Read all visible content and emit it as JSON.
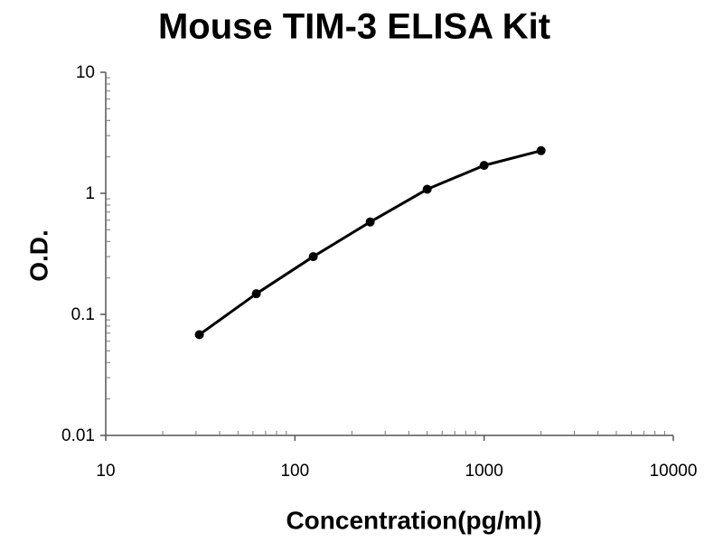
{
  "chart_data": {
    "type": "line",
    "title": "Mouse TIM-3 ELISA Kit",
    "xlabel": "Concentration(pg/ml)",
    "ylabel": "O.D.",
    "x": [
      31.25,
      62.5,
      125,
      250,
      500,
      1000,
      2000
    ],
    "values": [
      0.068,
      0.148,
      0.3,
      0.58,
      1.08,
      1.7,
      2.25
    ],
    "color": "#000000",
    "xscale": "log",
    "yscale": "log",
    "xlim": [
      10,
      10000
    ],
    "ylim": [
      0.01,
      10
    ],
    "xticks": [
      10,
      100,
      1000,
      10000
    ],
    "yticks": [
      0.01,
      0.1,
      1,
      10
    ],
    "minor_ticks": true,
    "markers": true
  }
}
